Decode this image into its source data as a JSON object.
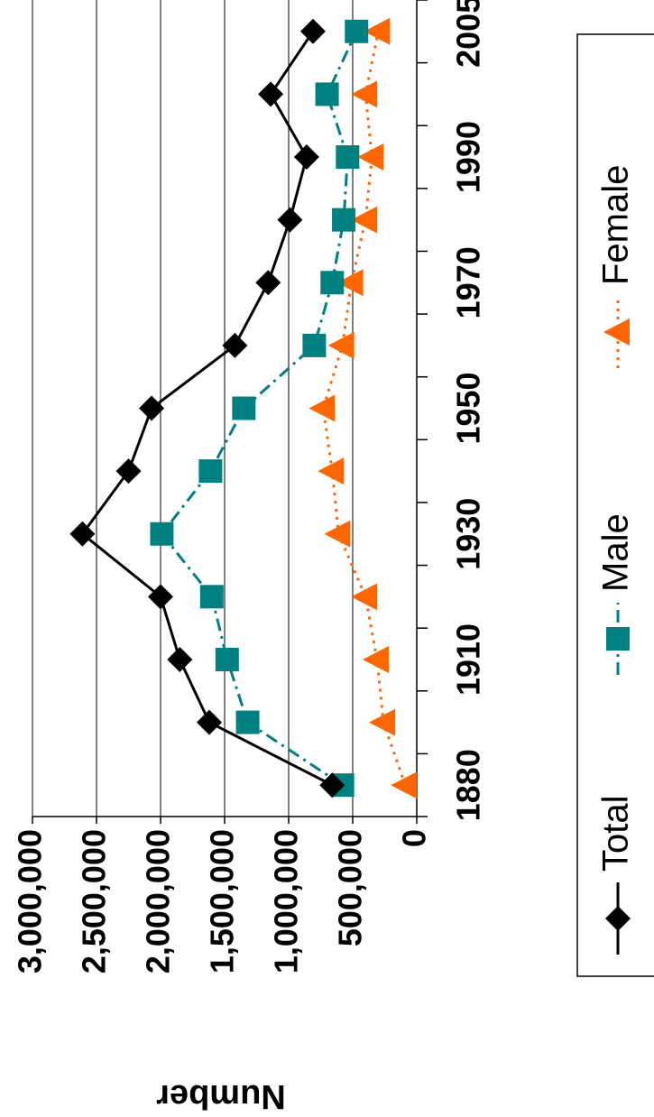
{
  "chart_data": {
    "type": "line",
    "y_label": "Number",
    "categories": [
      "1880",
      null,
      "1910",
      null,
      "1930",
      null,
      "1950",
      null,
      "1970",
      null,
      "1990",
      null,
      "2005"
    ],
    "series": [
      {
        "name": "Total",
        "color": "#000000",
        "marker": "diamond",
        "dash": "solid",
        "values": [
          660000,
          1620000,
          1850000,
          2000000,
          2610000,
          2250000,
          2070000,
          1420000,
          1160000,
          990000,
          860000,
          1140000,
          810000
        ]
      },
      {
        "name": "Male",
        "color": "#008080",
        "marker": "square",
        "dash": "dashdot",
        "values": [
          580000,
          1320000,
          1480000,
          1600000,
          1990000,
          1610000,
          1350000,
          800000,
          660000,
          570000,
          540000,
          700000,
          470000
        ]
      },
      {
        "name": "Female",
        "color": "#ff6600",
        "marker": "triangle",
        "dash": "dot",
        "values": [
          90000,
          260000,
          310000,
          400000,
          610000,
          660000,
          730000,
          580000,
          510000,
          400000,
          350000,
          400000,
          300000
        ]
      }
    ],
    "ylim": [
      0,
      3000000
    ],
    "yticks": [
      0,
      {
        "value": 500000,
        "label": "500,000"
      },
      {
        "value": 1000000,
        "label": "1,000,000"
      },
      {
        "value": 1500000,
        "label": "1,500,000"
      },
      {
        "value": 2000000,
        "label": "2,000,000"
      },
      {
        "value": 2500000,
        "label": "2,500,000"
      },
      {
        "value": 3000000,
        "label": "3,000,000"
      }
    ],
    "grid": true
  }
}
